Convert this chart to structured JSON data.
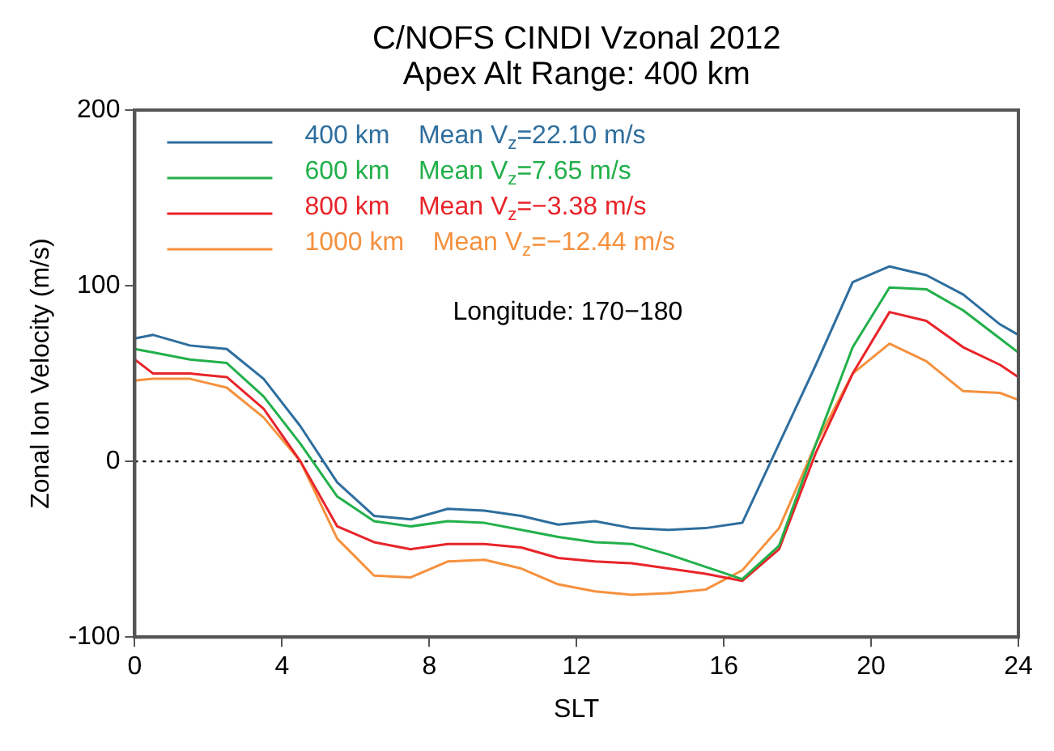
{
  "chart_data": {
    "type": "line",
    "title": "C/NOFS CINDI Vzonal 2012",
    "subtitle": "Apex Alt Range: 400 km",
    "xlabel": "SLT",
    "ylabel": "Zonal Ion Velocity (m/s)",
    "annotations": [
      "Longitude: 170−180"
    ],
    "x": [
      0,
      0.5,
      1.5,
      2.5,
      3.5,
      4.5,
      5.5,
      6.5,
      7.5,
      8.5,
      9.5,
      10.5,
      11.5,
      12.5,
      13.5,
      14.5,
      15.5,
      16.5,
      17.5,
      18.5,
      19.5,
      20.5,
      21.5,
      22.5,
      23.5,
      24
    ],
    "series": [
      {
        "name": "400 km    Mean V$_{z}$=22.10 m/s",
        "color": "#2e6e9e",
        "values": [
          70,
          72,
          66,
          64,
          47,
          20,
          -12,
          -31,
          -33,
          -27,
          -28,
          -31,
          -36,
          -34,
          -38,
          -39,
          -38,
          -35,
          10,
          55,
          102,
          111,
          106,
          95,
          78,
          72
        ]
      },
      {
        "name": "600 km    Mean V$_{z}$=7.65 m/s",
        "color": "#22b04b",
        "values": [
          64,
          62,
          58,
          56,
          37,
          10,
          -20,
          -34,
          -37,
          -34,
          -35,
          -39,
          -43,
          -46,
          -47,
          -53,
          -60,
          -67,
          -48,
          10,
          65,
          99,
          98,
          86,
          70,
          62
        ]
      },
      {
        "name": "800 km    Mean V$_{z}$=−3.38 m/s",
        "color": "#e8242a",
        "values": [
          58,
          50,
          50,
          48,
          30,
          0,
          -37,
          -46,
          -50,
          -47,
          -47,
          -49,
          -55,
          -57,
          -58,
          -61,
          -64,
          -68,
          -50,
          5,
          50,
          85,
          80,
          65,
          55,
          48
        ]
      },
      {
        "name": "1000 km    Mean V$_{z}$=−12.44 m/s",
        "color": "#f5913e",
        "values": [
          46,
          47,
          47,
          42,
          25,
          0,
          -44,
          -65,
          -66,
          -57,
          -56,
          -61,
          -70,
          -74,
          -76,
          -75,
          -73,
          -62,
          -38,
          10,
          50,
          67,
          57,
          40,
          39,
          35
        ]
      }
    ],
    "xlim": [
      0,
      24
    ],
    "xticks": [
      0,
      4,
      8,
      12,
      16,
      20,
      24
    ],
    "ylim": [
      -100,
      200
    ],
    "yticks": [
      -100,
      0,
      100,
      200
    ],
    "ref_lines": [
      {
        "axis": "y",
        "value": 0,
        "color": "#000000",
        "line_style": "dotted"
      }
    ],
    "grid": false,
    "legend": "top left",
    "marker": "none",
    "line_style": "solid"
  }
}
